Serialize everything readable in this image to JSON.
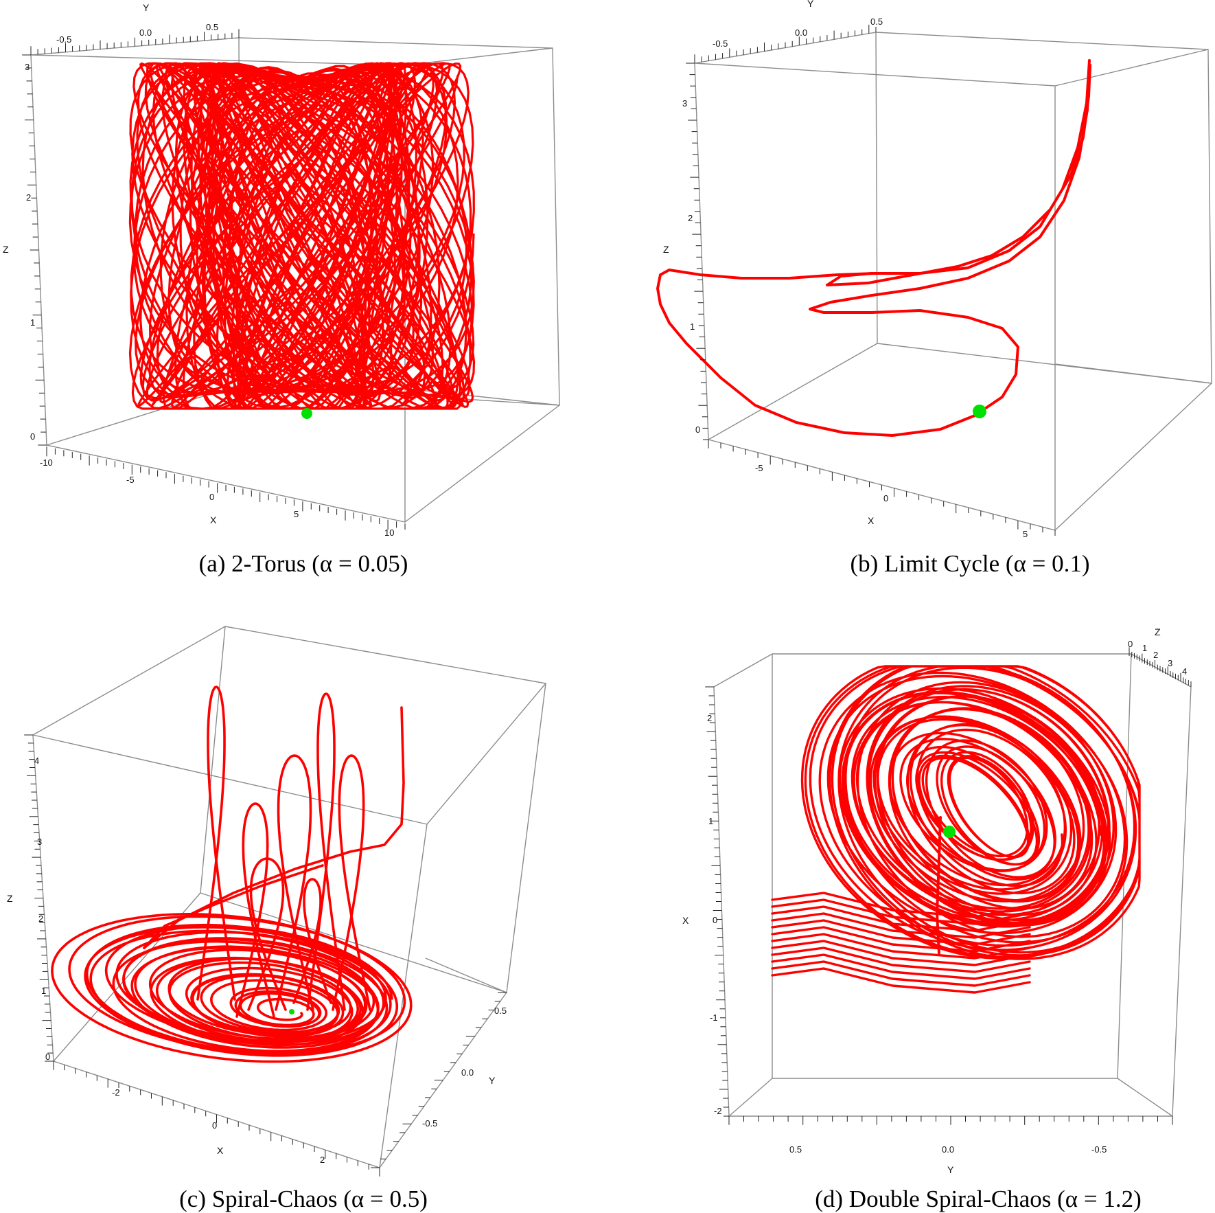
{
  "colors": {
    "trajectory": "#ff0000",
    "initial_point": "#00e000",
    "box": "#8c8c8c"
  },
  "chart_data": [
    {
      "type": "line3d",
      "panel": "a",
      "caption": "(a) 2-Torus (α = 0.05)",
      "xlabel": "X",
      "ylabel": "Y",
      "zlabel": "Z",
      "x_ticks": [
        "-10",
        "-5",
        "0",
        "5",
        "10"
      ],
      "y_ticks": [
        "-0.5",
        "0.0",
        "0.5"
      ],
      "z_ticks": [
        "0",
        "1",
        "2",
        "3"
      ],
      "xlim": [
        -10.5,
        10.5
      ],
      "ylim": [
        -0.9,
        0.9
      ],
      "zlim": [
        0,
        3.1
      ],
      "initial_point": [
        0,
        0,
        0.2
      ]
    },
    {
      "type": "line3d",
      "panel": "b",
      "caption": "(b) Limit Cycle (α = 0.1)",
      "xlabel": "X",
      "ylabel": "Y",
      "zlabel": "Z",
      "x_ticks": [
        "-5",
        "0",
        "5"
      ],
      "y_ticks": [
        "-0.5",
        "0.0",
        "0.5"
      ],
      "z_ticks": [
        "0",
        "1",
        "2",
        "3"
      ],
      "xlim": [
        -7.5,
        6.5
      ],
      "ylim": [
        -0.9,
        0.9
      ],
      "zlim": [
        0,
        3.3
      ],
      "initial_point": [
        3,
        0.1,
        0.15
      ]
    },
    {
      "type": "line3d",
      "panel": "c",
      "caption": "(c) Spiral-Chaos (α = 0.5)",
      "xlabel": "X",
      "ylabel": "Y",
      "zlabel": "Z",
      "x_ticks": [
        "-2",
        "0",
        "2"
      ],
      "y_ticks": [
        "0.5",
        "0.0",
        "-0.5"
      ],
      "z_ticks": [
        "0",
        "1",
        "2",
        "3",
        "4"
      ],
      "xlim": [
        -3,
        3
      ],
      "ylim": [
        -0.9,
        0.9
      ],
      "zlim": [
        0,
        4.3
      ],
      "initial_point": [
        0.8,
        0,
        0.5
      ]
    },
    {
      "type": "line3d",
      "panel": "d",
      "caption": "(d) Double Spiral-Chaos (α = 1.2)",
      "xlabel": "X",
      "ylabel": "Y",
      "zlabel": "Z",
      "x_ticks": [
        "-2",
        "-1",
        "0",
        "1",
        "2"
      ],
      "y_ticks": [
        "0.5",
        "0.0",
        "-0.5"
      ],
      "z_ticks": [
        "0",
        "1",
        "2",
        "3",
        "4"
      ],
      "xlim": [
        -2.3,
        2.3
      ],
      "ylim": [
        -0.8,
        0.8
      ],
      "zlim": [
        0,
        4.6
      ],
      "initial_point": [
        0.9,
        0,
        2
      ]
    }
  ]
}
